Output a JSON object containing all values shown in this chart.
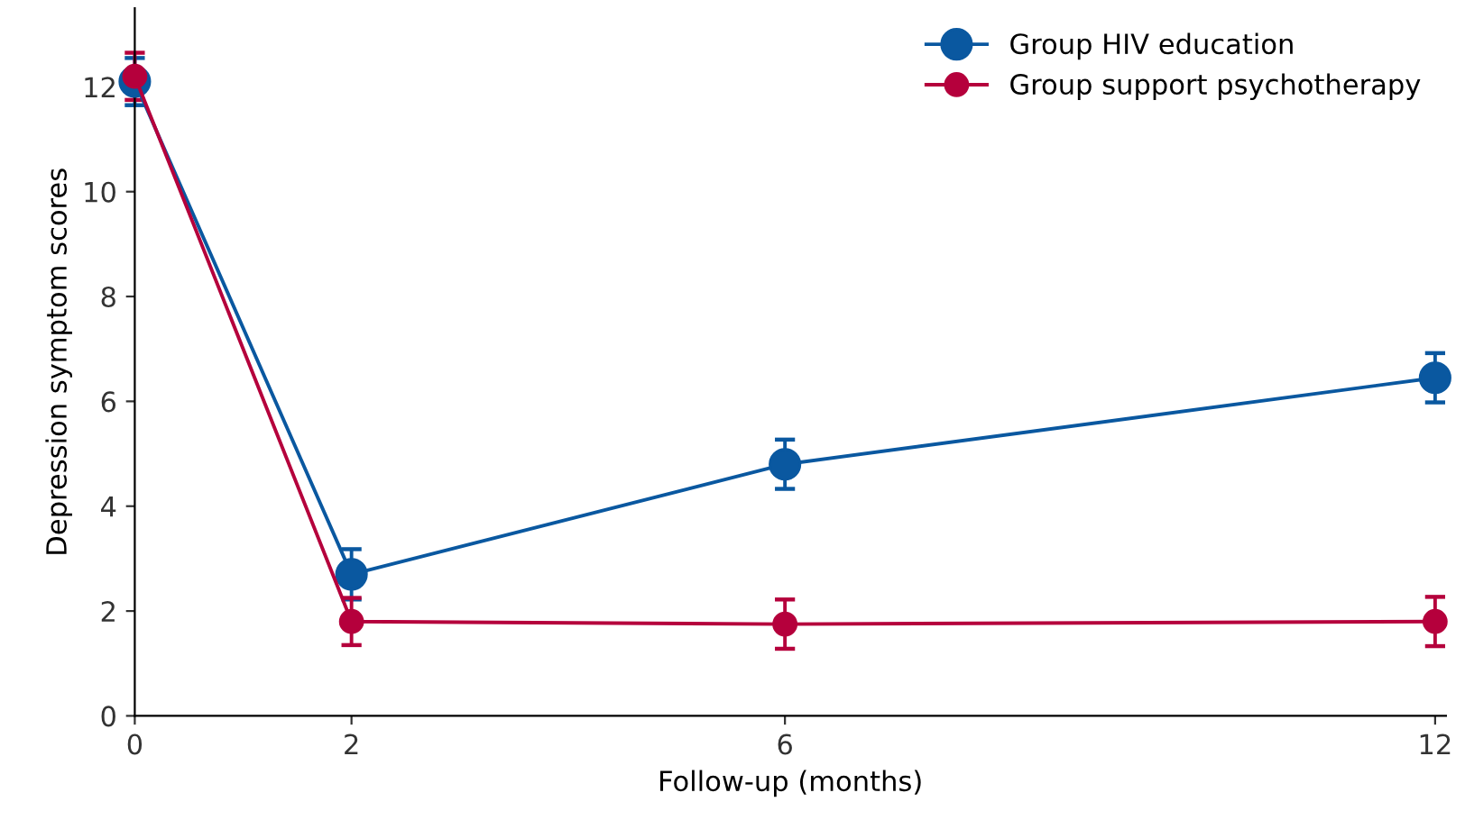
{
  "chart_data": {
    "type": "line",
    "xlabel": "Follow-up (months)",
    "ylabel": "Depression symptom scores",
    "x": [
      0,
      2,
      6,
      12
    ],
    "xlim": [
      0,
      12.1
    ],
    "xticks": [
      0,
      2,
      6,
      12
    ],
    "ylim": [
      0,
      13.5
    ],
    "yticks": [
      0,
      2,
      4,
      6,
      8,
      10,
      12
    ],
    "series": [
      {
        "name": "Group HIV education",
        "color": "#0a58a0",
        "values": [
          12.1,
          2.7,
          4.8,
          6.45
        ],
        "errors": [
          0.45,
          0.48,
          0.47,
          0.47
        ]
      },
      {
        "name": "Group support psychotherapy",
        "color": "#b5003c",
        "values": [
          12.2,
          1.8,
          1.75,
          1.8
        ],
        "errors": [
          0.45,
          0.45,
          0.47,
          0.47
        ]
      }
    ],
    "marker": "circle",
    "line_style": "solid",
    "legend": "top right",
    "grid": false
  }
}
